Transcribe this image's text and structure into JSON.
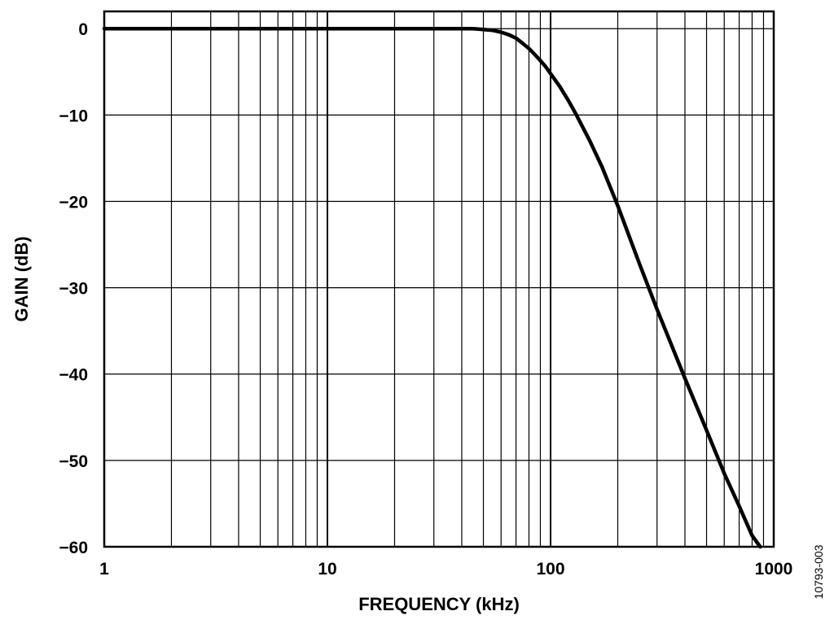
{
  "chart_data": {
    "type": "line",
    "xscale": "log",
    "xlim": [
      1,
      1000
    ],
    "ylim": [
      -60,
      2
    ],
    "xlabel": "FREQUENCY (kHz)",
    "ylabel": "GAIN (dB)",
    "x_ticks": [
      1,
      10,
      100,
      1000
    ],
    "x_tick_labels": [
      "1",
      "10",
      "100",
      "1000"
    ],
    "y_ticks": [
      0,
      -10,
      -20,
      -30,
      -40,
      -50,
      -60
    ],
    "y_tick_labels": [
      "0",
      "−10",
      "−20",
      "−30",
      "−40",
      "−50",
      "−60"
    ],
    "grid": true,
    "series": [
      {
        "color": "#000000",
        "x": [
          1,
          2,
          5,
          10,
          20,
          30,
          40,
          45,
          50,
          55,
          60,
          65,
          70,
          75,
          80,
          85,
          90,
          95,
          100,
          110,
          120,
          130,
          150,
          170,
          200,
          250,
          300,
          400,
          500,
          600,
          700,
          800,
          870
        ],
        "y": [
          0,
          0,
          0,
          0,
          0,
          0,
          0,
          0,
          -0.1,
          -0.2,
          -0.4,
          -0.7,
          -1.1,
          -1.7,
          -2.3,
          -3.0,
          -3.7,
          -4.4,
          -5.2,
          -6.7,
          -8.3,
          -9.9,
          -13.0,
          -16.0,
          -20.5,
          -27.2,
          -32.5,
          -40.5,
          -46.5,
          -51.5,
          -55.3,
          -58.7,
          -60.0
        ]
      }
    ]
  },
  "figure_id": "10793-003"
}
